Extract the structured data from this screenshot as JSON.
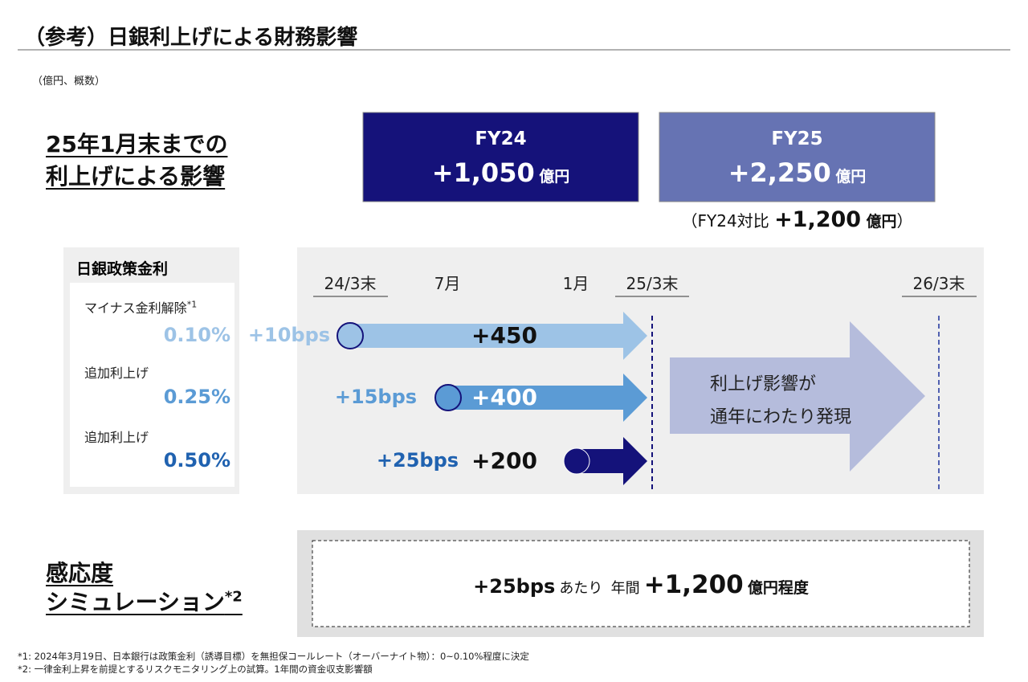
{
  "title": "（参考）日銀利上げによる財務影響",
  "unit": "（億円、概数）",
  "impact": {
    "heading": [
      "25年1月末までの",
      "利上げによる影響"
    ],
    "fy24": {
      "label": "FY24",
      "value": "+1,050",
      "unit": "億円"
    },
    "fy25": {
      "label": "FY25",
      "value": "+2,250",
      "unit": "億円"
    },
    "compare": {
      "prefix": "（FY24対比",
      "value": "+1,200",
      "unit": "億円",
      "suffix": "）"
    }
  },
  "policy": {
    "heading": "日銀政策金利",
    "rates": [
      {
        "label": "マイナス金利解除",
        "note": "*1",
        "rate": "0.10%",
        "bps": "+10bps",
        "impact": "+450"
      },
      {
        "label": "追加利上げ",
        "rate": "0.25%",
        "bps": "+15bps",
        "impact": "+400"
      },
      {
        "label": "追加利上げ",
        "rate": "0.50%",
        "bps": "+25bps",
        "impact": "+200"
      }
    ]
  },
  "timeline": [
    "24/3末",
    "7月",
    "1月",
    "25/3末",
    "26/3末"
  ],
  "full_year": [
    "利上げ影響が",
    "通年にわたり発現"
  ],
  "sensitivity": {
    "heading": [
      "感応度",
      "シミュレーション"
    ],
    "note": "*2",
    "bps": "+25bps",
    "per": "あたり",
    "annual": "年間",
    "value": "+1,200",
    "unit": "億円程度"
  },
  "footnotes": [
    "*1: 2024年3月19日、日本銀行は政策金利（誘導目標）を無担保コールレート（オーバーナイト物）：0~0.10%程度に決定",
    "*2: 一律金利上昇を前提とするリスクモニタリング上の試算。1年間の資金収支影響額"
  ]
}
